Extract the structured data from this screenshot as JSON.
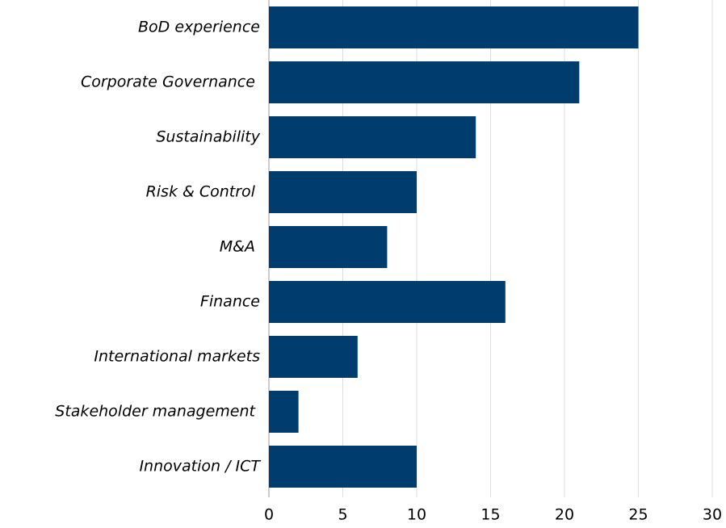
{
  "chart_data": {
    "type": "barh",
    "categories": [
      "BoD experience",
      "Corporate Governance ",
      "Sustainability",
      "Risk & Control ",
      "M&A ",
      "Finance",
      "International markets",
      "Stakeholder management ",
      "Innovation / ICT"
    ],
    "values": [
      25,
      21,
      14,
      10,
      8,
      16,
      6,
      2,
      10
    ],
    "color": "#003d6e",
    "xlim": [
      0,
      30
    ],
    "xticks": [
      0,
      5,
      10,
      15,
      20,
      25,
      30
    ],
    "grid": true
  }
}
